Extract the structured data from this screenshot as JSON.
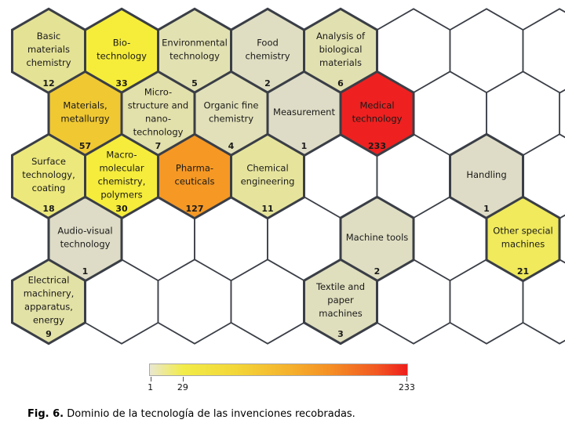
{
  "chart_data": {
    "type": "heatmap",
    "subtype": "hexagonal-technology-map",
    "title": "",
    "value_min": 1,
    "value_max": 233,
    "colorbar_ticks": [
      1,
      29,
      233
    ],
    "empty_color": "#ffffff",
    "cells": [
      {
        "row": 1,
        "col": 0,
        "label": "Basic materials chemistry",
        "lines": [
          "Basic",
          "materials",
          "chemistry"
        ],
        "value": 12,
        "color": "#e4e295"
      },
      {
        "row": 1,
        "col": 1,
        "label": "Bio-technology",
        "lines": [
          "Bio-",
          "technology"
        ],
        "value": 33,
        "color": "#f6ed3a"
      },
      {
        "row": 1,
        "col": 2,
        "label": "Environmental technology",
        "lines": [
          "Environmental",
          "technology"
        ],
        "value": 5,
        "color": "#e2e1b2"
      },
      {
        "row": 1,
        "col": 3,
        "label": "Food chemistry",
        "lines": [
          "Food",
          "chemistry"
        ],
        "value": 2,
        "color": "#dfdec2"
      },
      {
        "row": 1,
        "col": 4,
        "label": "Analysis of biological materials",
        "lines": [
          "Analysis of",
          "biological",
          "materials"
        ],
        "value": 6,
        "color": "#e1e0b0"
      },
      {
        "row": 2,
        "col": 0,
        "label": "Materials, metallurgy",
        "lines": [
          "Materials,",
          "metallurgy"
        ],
        "value": 57,
        "color": "#f0c832"
      },
      {
        "row": 2,
        "col": 1,
        "label": "Micro-structure and nano-technology",
        "lines": [
          "Micro-",
          "structure and",
          "nano-",
          "technology"
        ],
        "value": 7,
        "color": "#e2e0ab"
      },
      {
        "row": 2,
        "col": 2,
        "label": "Organic fine chemistry",
        "lines": [
          "Organic fine",
          "chemistry"
        ],
        "value": 4,
        "color": "#e1e0b8"
      },
      {
        "row": 2,
        "col": 3,
        "label": "Measurement",
        "lines": [
          "Measurement"
        ],
        "value": 1,
        "color": "#dedcc6"
      },
      {
        "row": 2,
        "col": 4,
        "label": "Medical technology",
        "lines": [
          "Medical",
          "technology"
        ],
        "value": 233,
        "color": "#ee2120"
      },
      {
        "row": 3,
        "col": 0,
        "label": "Surface technology, coating",
        "lines": [
          "Surface",
          "technology,",
          "coating"
        ],
        "value": 18,
        "color": "#ece87c"
      },
      {
        "row": 3,
        "col": 1,
        "label": "Macro-molecular chemistry, polymers",
        "lines": [
          "Macro-",
          "molecular",
          "chemistry,",
          "polymers"
        ],
        "value": 30,
        "color": "#f5ec3c"
      },
      {
        "row": 3,
        "col": 2,
        "label": "Pharma-ceuticals",
        "lines": [
          "Pharma-",
          "ceuticals"
        ],
        "value": 127,
        "color": "#f59824"
      },
      {
        "row": 3,
        "col": 3,
        "label": "Chemical engineering",
        "lines": [
          "Chemical",
          "engineering"
        ],
        "value": 11,
        "color": "#e6e49c"
      },
      {
        "row": 3,
        "col": 6,
        "label": "Handling",
        "lines": [
          "Handling"
        ],
        "value": 1,
        "color": "#dedcc6"
      },
      {
        "row": 4,
        "col": 0,
        "label": "Audio-visual technology",
        "lines": [
          "Audio-visual",
          "technology"
        ],
        "value": 1,
        "color": "#dedcc6"
      },
      {
        "row": 4,
        "col": 4,
        "label": "Machine tools",
        "lines": [
          "Machine tools"
        ],
        "value": 2,
        "color": "#dfdec2"
      },
      {
        "row": 4,
        "col": 6,
        "label": "Other special machines",
        "lines": [
          "Other special",
          "machines"
        ],
        "value": 21,
        "color": "#f0ea5c"
      },
      {
        "row": 5,
        "col": 0,
        "label": "Electrical machinery, apparatus, energy",
        "lines": [
          "Electrical",
          "machinery,",
          "apparatus,",
          "energy"
        ],
        "value": 9,
        "color": "#e3e2a6"
      },
      {
        "row": 5,
        "col": 4,
        "label": "Textile and paper machines",
        "lines": [
          "Textile and",
          "paper",
          "machines"
        ],
        "value": 3,
        "color": "#dfdebd"
      }
    ],
    "empty_cells": [
      {
        "row": 1,
        "col": 5
      },
      {
        "row": 1,
        "col": 6
      },
      {
        "row": 1,
        "col": 7
      },
      {
        "row": 2,
        "col": 5
      },
      {
        "row": 2,
        "col": 6
      },
      {
        "row": 3,
        "col": 4
      },
      {
        "row": 3,
        "col": 5
      },
      {
        "row": 3,
        "col": 7
      },
      {
        "row": 4,
        "col": 1
      },
      {
        "row": 4,
        "col": 2
      },
      {
        "row": 4,
        "col": 3
      },
      {
        "row": 4,
        "col": 5
      },
      {
        "row": 5,
        "col": 1
      },
      {
        "row": 5,
        "col": 2
      },
      {
        "row": 5,
        "col": 3
      },
      {
        "row": 5,
        "col": 5
      },
      {
        "row": 5,
        "col": 6
      },
      {
        "row": 5,
        "col": 7
      }
    ]
  },
  "colorbar": {
    "tick_labels": [
      {
        "label": "1",
        "pct": 0.5
      },
      {
        "label": "29",
        "pct": 13
      },
      {
        "label": "233",
        "pct": 99.5
      }
    ],
    "gradient_stops": [
      {
        "color": "#e9e7d0",
        "pct": 0
      },
      {
        "color": "#f2ec48",
        "pct": 13
      },
      {
        "color": "#f3d738",
        "pct": 33
      },
      {
        "color": "#f5b02c",
        "pct": 55
      },
      {
        "color": "#f58f24",
        "pct": 70
      },
      {
        "color": "#f25822",
        "pct": 88
      },
      {
        "color": "#ee1e1c",
        "pct": 100
      }
    ]
  },
  "caption": {
    "label": "Fig. 6.",
    "text": "Dominio de la tecnología de las invenciones recobradas."
  },
  "style": {
    "border_color": "#3a3e46",
    "background": "#ffffff",
    "text_color": "#1a1a1a"
  }
}
